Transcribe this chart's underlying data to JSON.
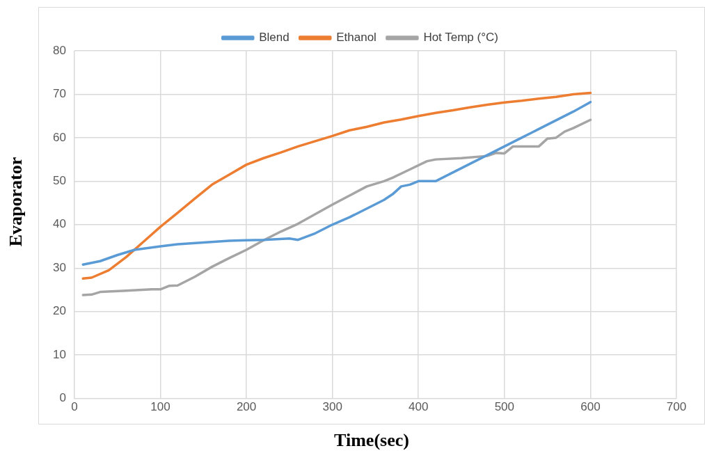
{
  "chart_data": {
    "type": "line",
    "xlabel": "Time(sec)",
    "ylabel": "Evaporator",
    "xlim": [
      0,
      700
    ],
    "xticks": [
      0,
      100,
      200,
      300,
      400,
      500,
      600,
      700
    ],
    "ylim": [
      0,
      80
    ],
    "yticks": [
      0,
      10,
      20,
      30,
      40,
      50,
      60,
      70,
      80
    ],
    "grid": true,
    "legend": "top",
    "marker": "none",
    "line_style": "solid",
    "series": [
      {
        "name": "Blend",
        "color": "#5b9bd5",
        "x": [
          10,
          30,
          50,
          70,
          100,
          120,
          150,
          180,
          200,
          220,
          250,
          260,
          280,
          300,
          320,
          340,
          360,
          370,
          380,
          390,
          400,
          420,
          440,
          460,
          480,
          500,
          520,
          540,
          560,
          580,
          600
        ],
        "values": [
          30.8,
          31.6,
          33.0,
          34.2,
          35.0,
          35.5,
          35.9,
          36.3,
          36.4,
          36.5,
          36.8,
          36.5,
          38,
          40,
          41.7,
          43.7,
          45.7,
          47,
          48.8,
          49.2,
          50,
          50,
          52,
          54,
          56,
          58,
          60,
          62,
          64,
          66,
          68.2
        ]
      },
      {
        "name": "Ethanol",
        "color": "#ed7d31",
        "x": [
          10,
          20,
          40,
          60,
          80,
          100,
          120,
          140,
          160,
          180,
          200,
          220,
          240,
          260,
          280,
          300,
          320,
          340,
          360,
          380,
          400,
          420,
          440,
          460,
          480,
          500,
          520,
          540,
          560,
          580,
          600
        ],
        "values": [
          27.6,
          27.8,
          29.5,
          32.5,
          36,
          39.5,
          42.7,
          46,
          49.2,
          51.5,
          53.8,
          55.3,
          56.6,
          58,
          59.2,
          60.4,
          61.7,
          62.5,
          63.5,
          64.2,
          65,
          65.7,
          66.3,
          67,
          67.6,
          68.1,
          68.5,
          69,
          69.4,
          70,
          70.3
        ]
      },
      {
        "name": "Hot Temp (°C)",
        "color": "#a5a5a5",
        "x": [
          10,
          20,
          30,
          60,
          90,
          100,
          110,
          120,
          140,
          160,
          180,
          200,
          220,
          240,
          260,
          280,
          300,
          320,
          340,
          360,
          370,
          390,
          410,
          420,
          450,
          480,
          490,
          500,
          510,
          530,
          540,
          550,
          560,
          570,
          580,
          600
        ],
        "values": [
          23.8,
          23.9,
          24.5,
          24.8,
          25.1,
          25.1,
          25.9,
          26,
          28,
          30.3,
          32.3,
          34.2,
          36.4,
          38.4,
          40.2,
          42.4,
          44.6,
          46.7,
          48.8,
          50,
          50.8,
          52.7,
          54.6,
          55,
          55.3,
          55.8,
          56.5,
          56.4,
          58,
          58,
          58,
          59.8,
          60,
          61.4,
          62.2,
          64.1
        ]
      }
    ]
  }
}
